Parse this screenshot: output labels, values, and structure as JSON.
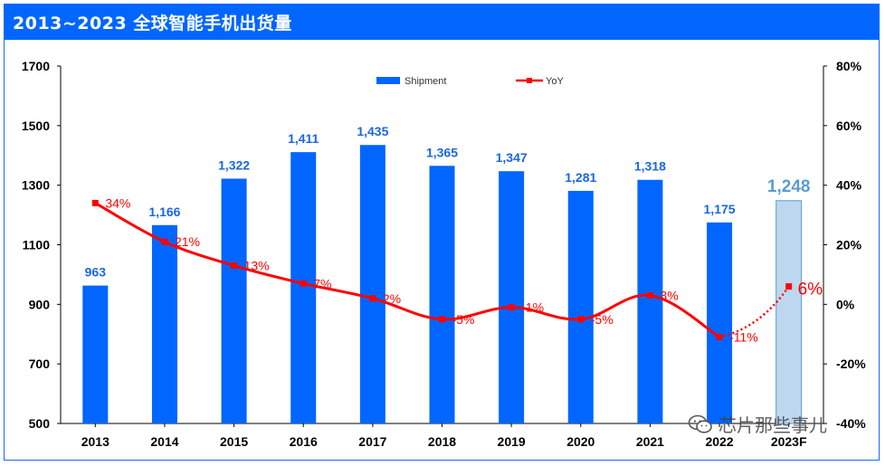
{
  "title": "2013~2023 全球智能手机出货量",
  "watermark": "芯片那些事儿",
  "colors": {
    "bar": "#0066ff",
    "bar_forecast": "#bdd7ee",
    "bar_forecast_border": "#5b9bd5",
    "line": "#ff0000",
    "label_blue": "#1a66e6",
    "label_forecast": "#5b9bd5"
  },
  "chart_data": {
    "type": "bar",
    "categories": [
      "2013",
      "2014",
      "2015",
      "2016",
      "2017",
      "2018",
      "2019",
      "2020",
      "2021",
      "2022",
      "2023F"
    ],
    "series": [
      {
        "name": "Shipment",
        "type": "bar",
        "axis": "left",
        "values": [
          963,
          1166,
          1322,
          1411,
          1435,
          1365,
          1347,
          1281,
          1318,
          1175,
          1248
        ],
        "labels": [
          "963",
          "1,166",
          "1,322",
          "1,411",
          "1,435",
          "1,365",
          "1,347",
          "1,281",
          "1,318",
          "1,175",
          "1,248"
        ],
        "forecast_index": 10
      },
      {
        "name": "YoY",
        "type": "line",
        "axis": "right",
        "values": [
          34,
          21,
          13,
          7,
          2,
          -5,
          -1,
          -5,
          3,
          -11,
          6
        ],
        "labels": [
          "34%",
          "21%",
          "13%",
          "7%",
          "2%",
          "-5%",
          "-1%",
          "-5%",
          "3%",
          "-11%",
          "6%"
        ],
        "forecast_index": 10
      }
    ],
    "y_left": {
      "min": 500,
      "max": 1700,
      "ticks": [
        500,
        700,
        900,
        1100,
        1300,
        1500,
        1700
      ]
    },
    "y_right": {
      "min": -40,
      "max": 80,
      "ticks": [
        "-40%",
        "-20%",
        "0%",
        "20%",
        "40%",
        "60%",
        "80%"
      ],
      "tick_values": [
        -40,
        -20,
        0,
        20,
        40,
        60,
        80
      ]
    },
    "legend_placement": "top-center",
    "grid": false
  }
}
